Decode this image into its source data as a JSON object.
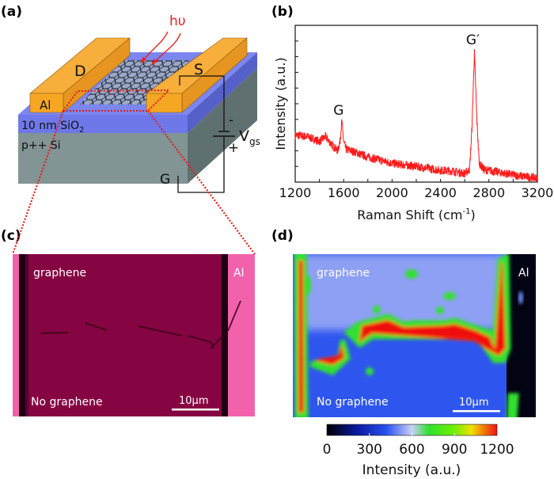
{
  "panels": {
    "a": {
      "label": "(a)",
      "photon": "hυ",
      "drain": "D",
      "source": "S",
      "gate": "G",
      "electrode_material": "Al",
      "oxide_label": "10 nm SiO",
      "oxide_sub": "2",
      "substrate": "p++ Si",
      "voltage": "V",
      "voltage_sub": "gs",
      "minus": "-",
      "plus": "+",
      "colors": {
        "electrode": "#f5a623",
        "oxide": "#6e78e8",
        "substrate": "#7f9090",
        "graphene": "#9aa8c8",
        "photon": "#e8201c",
        "zoom_lines": "#e0201a"
      }
    },
    "b": {
      "label": "(b)"
    },
    "c": {
      "label": "(c)",
      "graphene": "graphene",
      "no_graphene": "No graphene",
      "al": "Al",
      "scale_bar": "10μm",
      "colors": {
        "channel": "#850440",
        "electrode": "#f060a8",
        "gap": "#1a0010"
      }
    },
    "d": {
      "label": "(d)",
      "graphene": "graphene",
      "no_graphene": "No graphene",
      "al": "Al",
      "scale_bar": "10μm",
      "colorbar": {
        "ticks": [
          "0",
          "300",
          "600",
          "900",
          "1200"
        ],
        "label": "Intensity (a.u.)",
        "range": [
          0,
          1200
        ],
        "colormap": [
          "#000000",
          "#0a1aa0",
          "#2a50f0",
          "#c8d0f8",
          "#30e030",
          "#70f000",
          "#f0e000",
          "#f01010"
        ]
      }
    }
  },
  "chart_data": {
    "type": "line",
    "title": "",
    "xlabel": "Raman Shift (cm",
    "xlabel_sup": "-1",
    "xlabel_end": ")",
    "ylabel": "Intensity (a.u.)",
    "xlim": [
      1200,
      3200
    ],
    "ylim": [
      0,
      10
    ],
    "xticks": [
      "1200",
      "1600",
      "2000",
      "2400",
      "2800",
      "3200"
    ],
    "y_tick_labels": false,
    "grid": false,
    "color": "#ff1a1a",
    "series": [
      {
        "x": [
          1200,
          1300,
          1400,
          1450,
          1500,
          1550,
          1570,
          1585,
          1600,
          1620,
          1700,
          1800,
          2000,
          2200,
          2400,
          2500,
          2600,
          2640,
          2660,
          2680,
          2700,
          2720,
          2760,
          2900,
          3050,
          3200
        ],
        "y": [
          3.0,
          2.9,
          2.6,
          2.9,
          2.4,
          2.0,
          2.6,
          3.9,
          2.6,
          2.1,
          1.9,
          1.6,
          1.2,
          1.0,
          0.75,
          0.7,
          0.55,
          0.8,
          3.5,
          8.35,
          4.0,
          1.2,
          0.8,
          0.6,
          0.4,
          0.25
        ]
      }
    ],
    "annotations": [
      {
        "text": "G",
        "x": 1585
      },
      {
        "text": "G′",
        "x": 2680
      }
    ]
  }
}
